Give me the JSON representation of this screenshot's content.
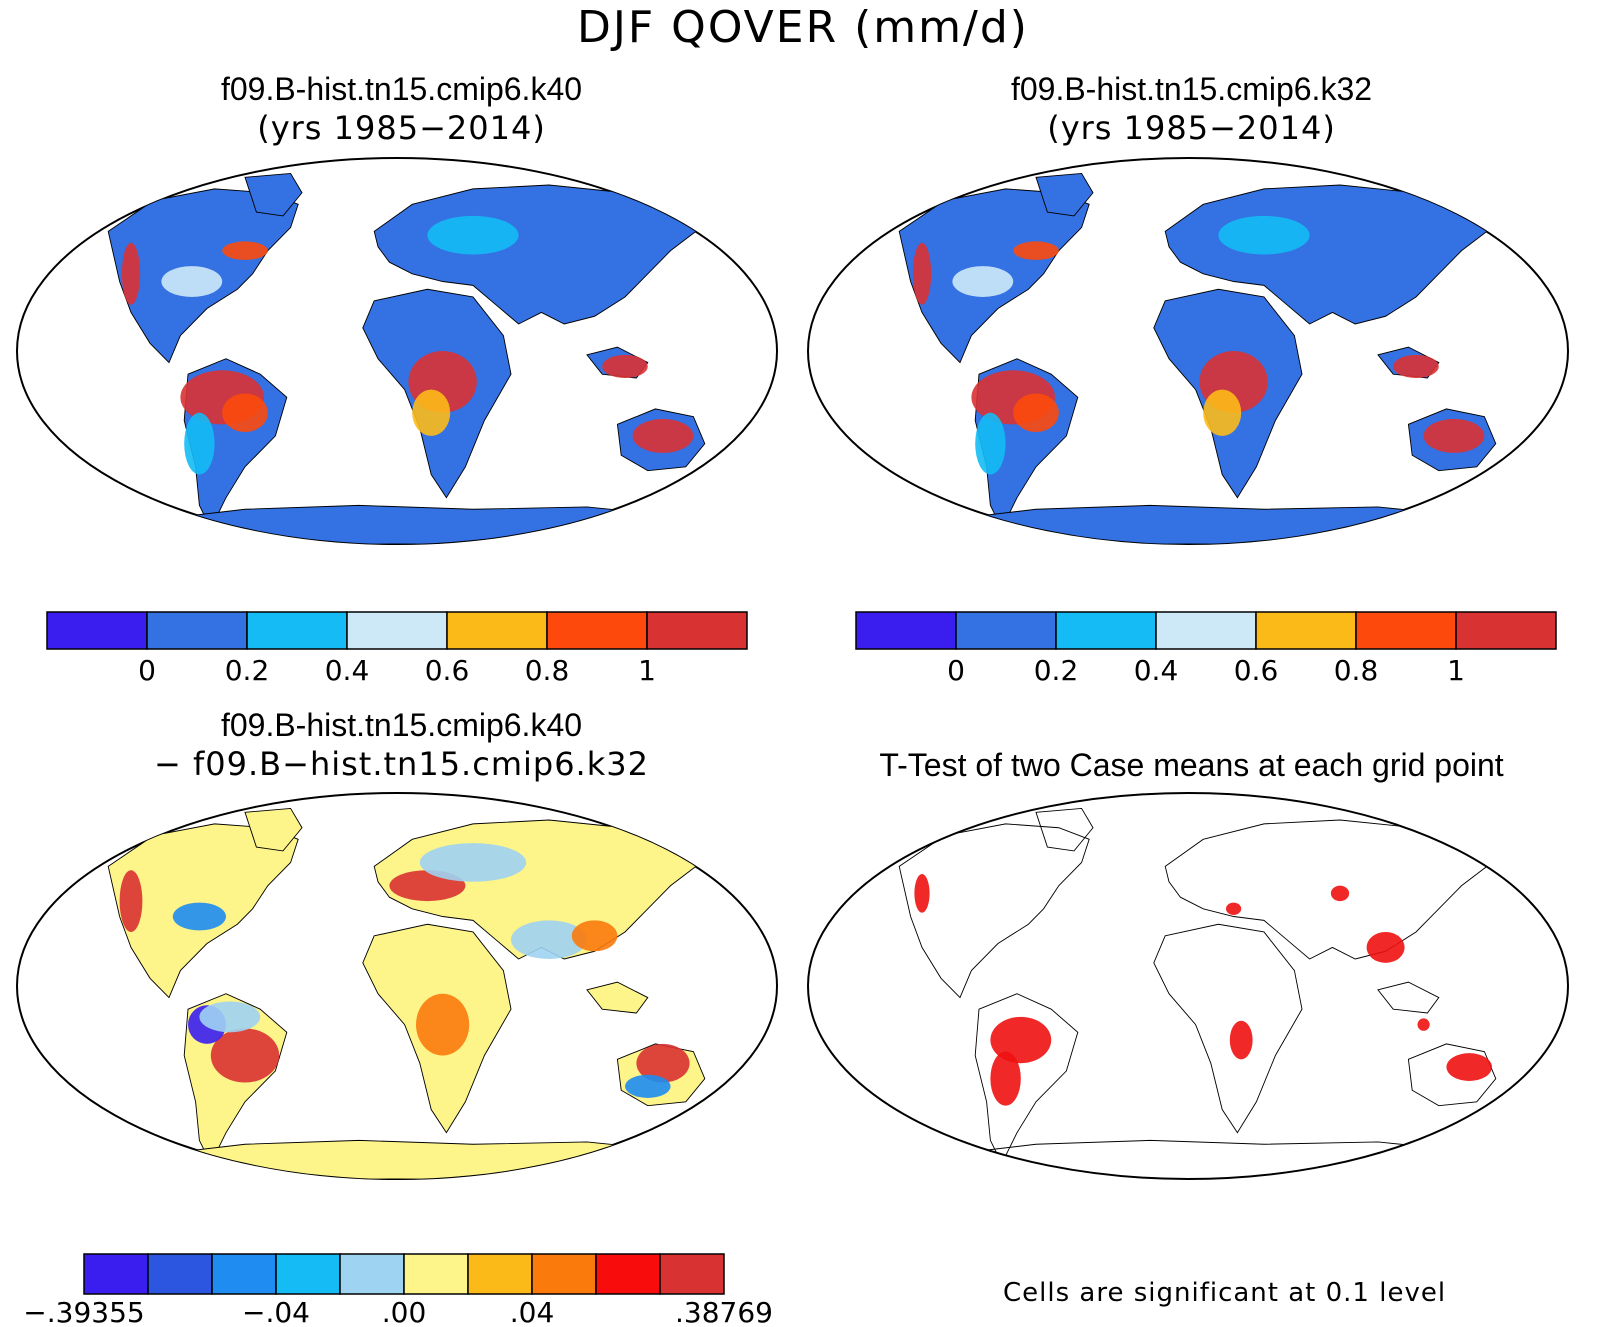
{
  "title": "DJF QOVER (mm/d)",
  "panels": [
    {
      "id": "p1",
      "title_line1": "f09.B-hist.tn15.cmip6.k40",
      "title_line2": "(yrs 1985−2014)"
    },
    {
      "id": "p2",
      "title_line1": "f09.B-hist.tn15.cmip6.k32",
      "title_line2": "(yrs 1985−2014)"
    },
    {
      "id": "p3",
      "title_line1": "f09.B-hist.tn15.cmip6.k40",
      "title_line2": "− f09.B−hist.tn15.cmip6.k32"
    },
    {
      "id": "p4",
      "title_line1": "T-Test of two Case means at each grid point",
      "title_line2": ""
    }
  ],
  "colorbar_top": {
    "colors": [
      "#3a1ef0",
      "#3471e3",
      "#14bbf5",
      "#cde9f7",
      "#fcba18",
      "#fd4a0c",
      "#d93232"
    ],
    "labels": [
      "0",
      "0.2",
      "0.4",
      "0.6",
      "0.8",
      "1"
    ]
  },
  "colorbar_diff": {
    "colors": [
      "#3a1ef0",
      "#2c55e0",
      "#1e8cf0",
      "#14bbf5",
      "#9fd3f2",
      "#fdf48a",
      "#fcba18",
      "#fb7a0c",
      "#f80c0c",
      "#d93232"
    ],
    "labels": [
      "−.39355",
      "−.04",
      ".00",
      ".04",
      ".38769"
    ]
  },
  "ttest_note": "Cells are significant at 0.1 level",
  "fill_colors": {
    "ocean": "#ffffff",
    "land_base": "#3471e3",
    "land_diff": "#fdf48a",
    "significant": "#ee1111"
  }
}
